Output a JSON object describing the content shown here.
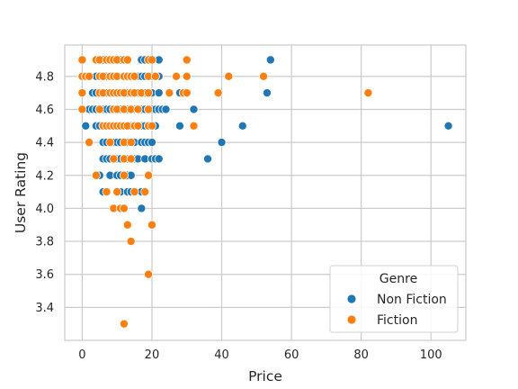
{
  "chart_data": {
    "type": "scatter",
    "title": "",
    "xlabel": "Price",
    "ylabel": "User Rating",
    "xlim": [
      -5,
      110
    ],
    "ylim": [
      3.2,
      4.99
    ],
    "xticks": [
      0,
      20,
      40,
      60,
      80,
      100
    ],
    "yticks": [
      3.4,
      3.6,
      3.8,
      4.0,
      4.2,
      4.4,
      4.6,
      4.8
    ],
    "grid": true,
    "legend": {
      "title": "Genre",
      "position": "bottom-right"
    },
    "series": [
      {
        "name": "Non Fiction",
        "color": "#1f77b4",
        "points": [
          [
            2,
            4.6
          ],
          [
            3,
            4.6
          ],
          [
            4,
            4.6
          ],
          [
            5,
            4.6
          ],
          [
            6,
            4.6
          ],
          [
            7,
            4.6
          ],
          [
            8,
            4.6
          ],
          [
            9,
            4.6
          ],
          [
            10,
            4.6
          ],
          [
            11,
            4.6
          ],
          [
            12,
            4.6
          ],
          [
            13,
            4.6
          ],
          [
            14,
            4.6
          ],
          [
            15,
            4.6
          ],
          [
            16,
            4.6
          ],
          [
            17,
            4.6
          ],
          [
            18,
            4.6
          ],
          [
            19,
            4.6
          ],
          [
            20,
            4.6
          ],
          [
            21,
            4.6
          ],
          [
            22,
            4.6
          ],
          [
            23,
            4.6
          ],
          [
            24,
            4.6
          ],
          [
            32,
            4.6
          ],
          [
            3,
            4.7
          ],
          [
            4,
            4.7
          ],
          [
            5,
            4.7
          ],
          [
            6,
            4.7
          ],
          [
            7,
            4.7
          ],
          [
            8,
            4.7
          ],
          [
            9,
            4.7
          ],
          [
            10,
            4.7
          ],
          [
            11,
            4.7
          ],
          [
            12,
            4.7
          ],
          [
            13,
            4.7
          ],
          [
            14,
            4.7
          ],
          [
            15,
            4.7
          ],
          [
            16,
            4.7
          ],
          [
            17,
            4.7
          ],
          [
            18,
            4.7
          ],
          [
            20,
            4.7
          ],
          [
            22,
            4.7
          ],
          [
            28,
            4.7
          ],
          [
            53,
            4.7
          ],
          [
            1,
            4.8
          ],
          [
            4,
            4.8
          ],
          [
            6,
            4.8
          ],
          [
            7,
            4.8
          ],
          [
            8,
            4.8
          ],
          [
            9,
            4.8
          ],
          [
            10,
            4.8
          ],
          [
            12,
            4.8
          ],
          [
            13,
            4.8
          ],
          [
            15,
            4.8
          ],
          [
            16,
            4.8
          ],
          [
            17,
            4.8
          ],
          [
            18,
            4.8
          ],
          [
            20,
            4.8
          ],
          [
            22,
            4.8
          ],
          [
            4,
            4.9
          ],
          [
            5,
            4.9
          ],
          [
            6,
            4.9
          ],
          [
            8,
            4.9
          ],
          [
            9,
            4.9
          ],
          [
            10,
            4.9
          ],
          [
            11,
            4.9
          ],
          [
            12,
            4.9
          ],
          [
            13,
            4.9
          ],
          [
            17,
            4.9
          ],
          [
            18,
            4.9
          ],
          [
            20,
            4.9
          ],
          [
            22,
            4.9
          ],
          [
            54,
            4.9
          ],
          [
            1,
            4.5
          ],
          [
            4,
            4.5
          ],
          [
            5,
            4.5
          ],
          [
            6,
            4.5
          ],
          [
            7,
            4.5
          ],
          [
            8,
            4.5
          ],
          [
            9,
            4.5
          ],
          [
            10,
            4.5
          ],
          [
            11,
            4.5
          ],
          [
            12,
            4.5
          ],
          [
            13,
            4.5
          ],
          [
            14,
            4.5
          ],
          [
            15,
            4.5
          ],
          [
            16,
            4.5
          ],
          [
            17,
            4.5
          ],
          [
            18,
            4.5
          ],
          [
            19,
            4.5
          ],
          [
            20,
            4.5
          ],
          [
            21,
            4.5
          ],
          [
            28,
            4.5
          ],
          [
            46,
            4.5
          ],
          [
            105,
            4.5
          ],
          [
            6,
            4.4
          ],
          [
            7,
            4.4
          ],
          [
            9,
            4.4
          ],
          [
            10,
            4.4
          ],
          [
            11,
            4.4
          ],
          [
            12,
            4.4
          ],
          [
            13,
            4.4
          ],
          [
            15,
            4.4
          ],
          [
            17,
            4.4
          ],
          [
            18,
            4.4
          ],
          [
            19,
            4.4
          ],
          [
            20,
            4.4
          ],
          [
            40,
            4.4
          ],
          [
            6,
            4.3
          ],
          [
            7,
            4.3
          ],
          [
            8,
            4.3
          ],
          [
            10,
            4.3
          ],
          [
            11,
            4.3
          ],
          [
            12,
            4.3
          ],
          [
            13,
            4.3
          ],
          [
            15,
            4.3
          ],
          [
            16,
            4.3
          ],
          [
            18,
            4.3
          ],
          [
            20,
            4.3
          ],
          [
            21,
            4.3
          ],
          [
            22,
            4.3
          ],
          [
            36,
            4.3
          ],
          [
            5,
            4.2
          ],
          [
            8,
            4.2
          ],
          [
            10,
            4.2
          ],
          [
            11,
            4.2
          ],
          [
            13,
            4.2
          ],
          [
            14,
            4.2
          ],
          [
            19,
            4.2
          ],
          [
            6,
            4.1
          ],
          [
            10,
            4.1
          ],
          [
            11,
            4.1
          ],
          [
            13,
            4.1
          ],
          [
            14,
            4.1
          ],
          [
            17,
            4.1
          ],
          [
            17,
            4.0
          ]
        ]
      },
      {
        "name": "Fiction",
        "color": "#ff7f0e",
        "points": [
          [
            0,
            4.9
          ],
          [
            4,
            4.9
          ],
          [
            5,
            4.9
          ],
          [
            7,
            4.9
          ],
          [
            8,
            4.9
          ],
          [
            9,
            4.9
          ],
          [
            10,
            4.9
          ],
          [
            12,
            4.9
          ],
          [
            13,
            4.9
          ],
          [
            19,
            4.9
          ],
          [
            20,
            4.9
          ],
          [
            30,
            4.9
          ],
          [
            0,
            4.8
          ],
          [
            1,
            4.8
          ],
          [
            2,
            4.8
          ],
          [
            5,
            4.8
          ],
          [
            6,
            4.8
          ],
          [
            8,
            4.8
          ],
          [
            9,
            4.8
          ],
          [
            10,
            4.8
          ],
          [
            12,
            4.8
          ],
          [
            13,
            4.8
          ],
          [
            14,
            4.8
          ],
          [
            15,
            4.8
          ],
          [
            19,
            4.8
          ],
          [
            21,
            4.8
          ],
          [
            27,
            4.8
          ],
          [
            30,
            4.8
          ],
          [
            42,
            4.8
          ],
          [
            52,
            4.8
          ],
          [
            0,
            4.7
          ],
          [
            5,
            4.7
          ],
          [
            6,
            4.7
          ],
          [
            8,
            4.7
          ],
          [
            9,
            4.7
          ],
          [
            10,
            4.7
          ],
          [
            11,
            4.7
          ],
          [
            12,
            4.7
          ],
          [
            14,
            4.7
          ],
          [
            15,
            4.7
          ],
          [
            17,
            4.7
          ],
          [
            19,
            4.7
          ],
          [
            25,
            4.7
          ],
          [
            29,
            4.7
          ],
          [
            30,
            4.7
          ],
          [
            39,
            4.7
          ],
          [
            82,
            4.7
          ],
          [
            0,
            4.6
          ],
          [
            5,
            4.6
          ],
          [
            9,
            4.6
          ],
          [
            10,
            4.6
          ],
          [
            12,
            4.6
          ],
          [
            14,
            4.6
          ],
          [
            16,
            4.6
          ],
          [
            19,
            4.6
          ],
          [
            6,
            4.5
          ],
          [
            7,
            4.5
          ],
          [
            8,
            4.5
          ],
          [
            9,
            4.5
          ],
          [
            10,
            4.5
          ],
          [
            11,
            4.5
          ],
          [
            12,
            4.5
          ],
          [
            13,
            4.5
          ],
          [
            15,
            4.5
          ],
          [
            16,
            4.5
          ],
          [
            19,
            4.5
          ],
          [
            20,
            4.5
          ],
          [
            32,
            4.5
          ],
          [
            2,
            4.4
          ],
          [
            8,
            4.4
          ],
          [
            12,
            4.4
          ],
          [
            14,
            4.4
          ],
          [
            9,
            4.3
          ],
          [
            12,
            4.3
          ],
          [
            14,
            4.3
          ],
          [
            4,
            4.2
          ],
          [
            12,
            4.2
          ],
          [
            19,
            4.2
          ],
          [
            7,
            4.1
          ],
          [
            10,
            4.1
          ],
          [
            15,
            4.1
          ],
          [
            18,
            4.1
          ],
          [
            9,
            4.0
          ],
          [
            11,
            4.0
          ],
          [
            12,
            4.0
          ],
          [
            13,
            3.9
          ],
          [
            20,
            3.9
          ],
          [
            14,
            3.8
          ],
          [
            19,
            3.6
          ],
          [
            12,
            3.3
          ]
        ]
      }
    ]
  }
}
